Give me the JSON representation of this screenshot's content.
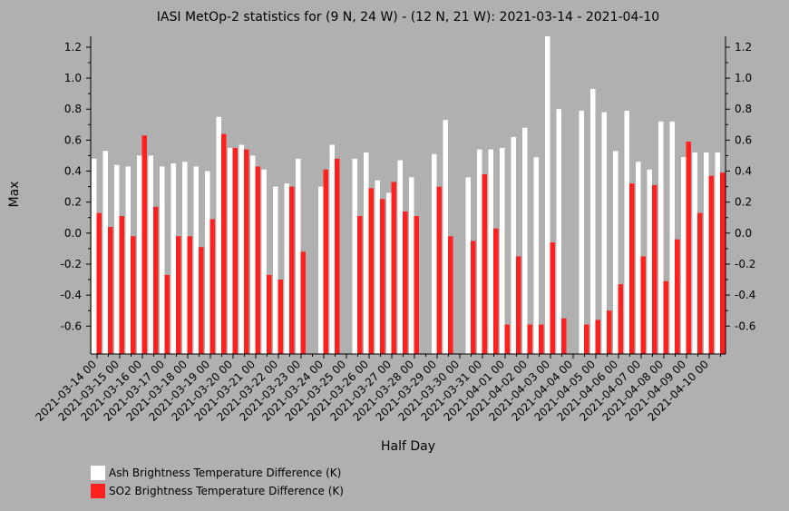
{
  "chart_data": {
    "type": "bar",
    "title": "IASI MetOp-2 statistics for (9 N, 24 W) - (12 N, 21 W): 2021-03-14 - 2021-04-10",
    "xlabel": "Half Day",
    "ylabel": "Max",
    "ylim": [
      -0.78,
      1.27
    ],
    "yticks": [
      -0.6,
      -0.4,
      -0.2,
      0.0,
      0.2,
      0.4,
      0.6,
      0.8,
      1.0,
      1.2
    ],
    "ytick_labels": [
      "-0.6",
      "-0.4",
      "-0.2",
      "0.0",
      "0.2",
      "0.4",
      "0.6",
      "0.8",
      "1.0",
      "1.2"
    ],
    "grid": false,
    "legend_position": "bottom-left",
    "day_labels": [
      "2021-03-14 00",
      "2021-03-15 00",
      "2021-03-16 00",
      "2021-03-17 00",
      "2021-03-18 00",
      "2021-03-19 00",
      "2021-03-20 00",
      "2021-03-21 00",
      "2021-03-22 00",
      "2021-03-23 00",
      "2021-03-24 00",
      "2021-03-25 00",
      "2021-03-26 00",
      "2021-03-27 00",
      "2021-03-28 00",
      "2021-03-29 00",
      "2021-03-30 00",
      "2021-03-31 00",
      "2021-04-01 00",
      "2021-04-02 00",
      "2021-04-03 00",
      "2021-04-04 00",
      "2021-04-05 00",
      "2021-04-06 00",
      "2021-04-07 00",
      "2021-04-08 00",
      "2021-04-09 00",
      "2021-04-10 00"
    ],
    "series": [
      {
        "name": "Ash Brightness Temperature Difference (K)",
        "color": "#ffffff",
        "values": [
          0.48,
          0.53,
          0.44,
          0.43,
          0.5,
          0.5,
          0.43,
          0.45,
          0.46,
          0.43,
          0.4,
          0.75,
          0.55,
          0.57,
          0.5,
          0.41,
          0.3,
          0.32,
          0.48,
          null,
          0.3,
          0.57,
          null,
          0.48,
          0.52,
          0.34,
          0.26,
          0.47,
          0.36,
          null,
          0.51,
          0.73,
          null,
          0.36,
          0.54,
          0.54,
          0.55,
          0.62,
          0.68,
          0.49,
          1.27,
          0.8,
          null,
          0.79,
          0.93,
          0.78,
          0.53,
          0.79,
          0.46,
          0.41,
          0.72,
          0.72,
          0.49,
          0.52,
          0.52,
          0.52
        ]
      },
      {
        "name": "SO2 Brightness Temperature Difference (K)",
        "color": "#ff2020",
        "values": [
          0.13,
          0.04,
          0.11,
          -0.02,
          0.63,
          0.17,
          -0.27,
          -0.02,
          -0.02,
          -0.09,
          0.09,
          0.64,
          0.55,
          0.54,
          0.43,
          -0.27,
          -0.3,
          0.3,
          -0.12,
          null,
          0.41,
          0.48,
          null,
          0.11,
          0.29,
          0.22,
          0.33,
          0.14,
          0.11,
          null,
          0.3,
          -0.02,
          null,
          -0.05,
          0.38,
          0.03,
          -0.59,
          -0.15,
          -0.59,
          -0.59,
          -0.06,
          -0.55,
          null,
          -0.59,
          -0.56,
          -0.5,
          -0.33,
          0.32,
          -0.15,
          0.31,
          -0.31,
          -0.04,
          0.59,
          0.13,
          0.37,
          0.39
        ]
      }
    ]
  },
  "legend": {
    "items": [
      {
        "label": "Ash Brightness Temperature Difference (K)",
        "color": "#ffffff"
      },
      {
        "label": "SO2 Brightness Temperature Difference (K)",
        "color": "#ff2020"
      }
    ]
  }
}
